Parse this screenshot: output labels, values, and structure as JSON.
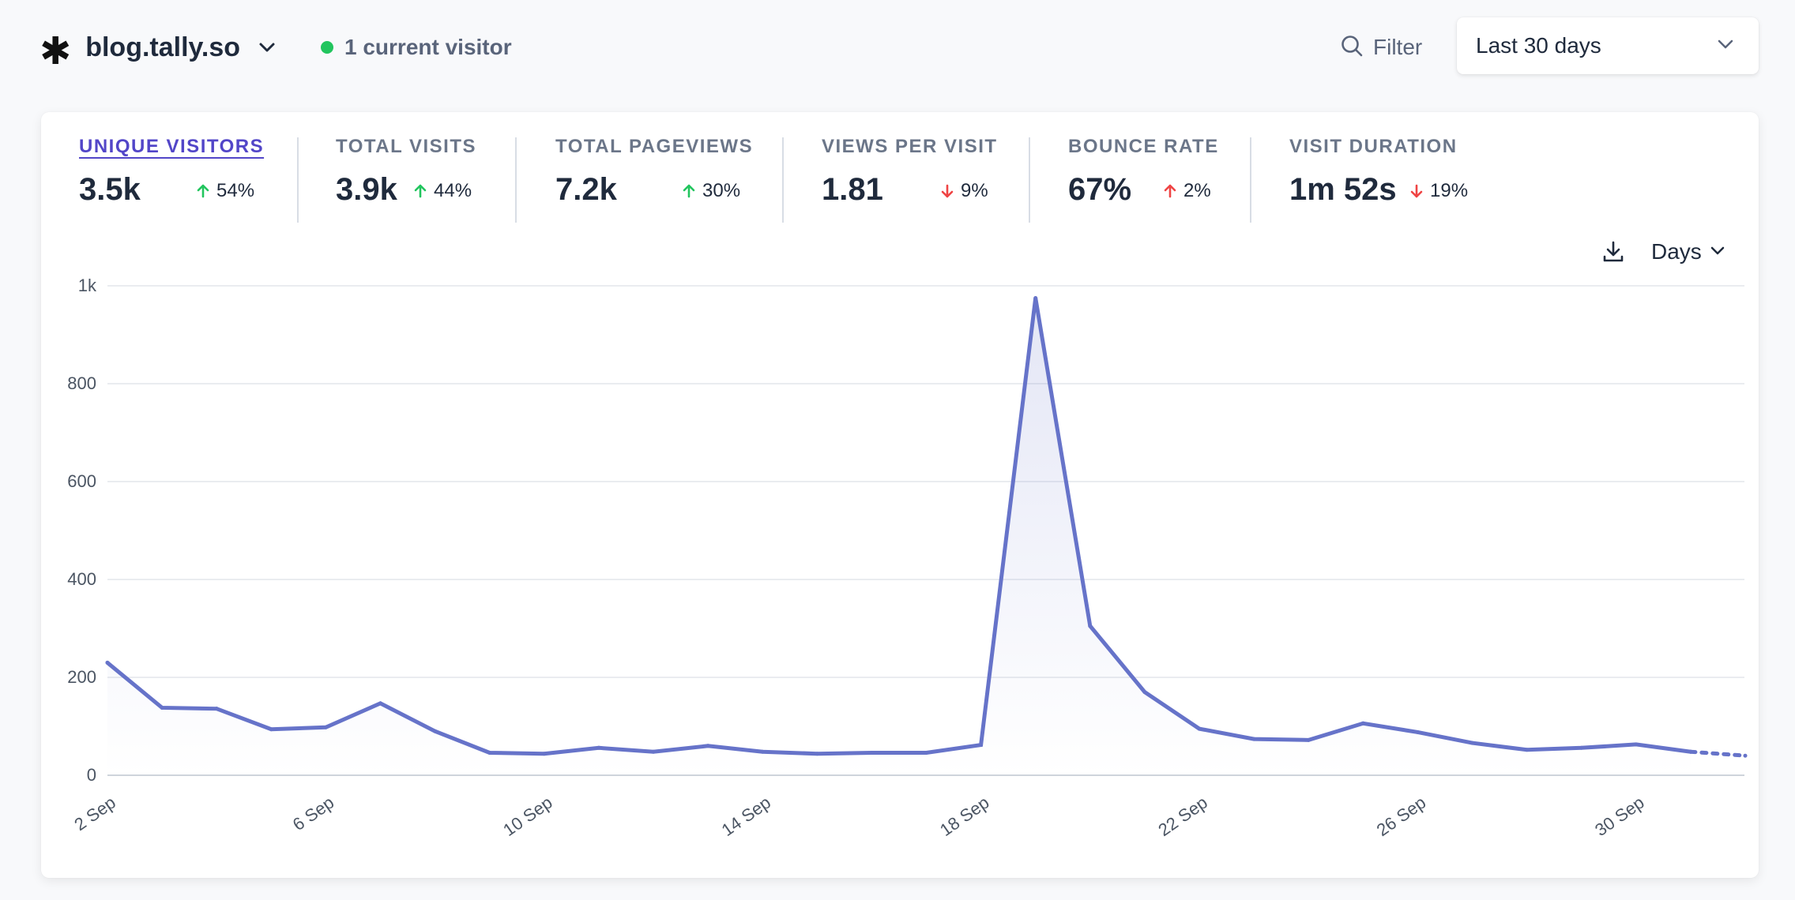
{
  "header": {
    "site_icon": "asterisk-icon",
    "site_name": "blog.tally.so",
    "current_visitors": "1 current visitor",
    "filter_label": "Filter",
    "period_label": "Last 30 days"
  },
  "metrics": [
    {
      "label": "UNIQUE VISITORS",
      "value": "3.5k",
      "change": "54%",
      "direction": "up"
    },
    {
      "label": "TOTAL VISITS",
      "value": "3.9k",
      "change": "44%",
      "direction": "up"
    },
    {
      "label": "TOTAL PAGEVIEWS",
      "value": "7.2k",
      "change": "30%",
      "direction": "up"
    },
    {
      "label": "VIEWS PER VISIT",
      "value": "1.81",
      "change": "9%",
      "direction": "down"
    },
    {
      "label": "BOUNCE RATE",
      "value": "67%",
      "change": "2%",
      "direction": "up"
    },
    {
      "label": "VISIT DURATION",
      "value": "1m 52s",
      "change": "19%",
      "direction": "down"
    }
  ],
  "chart_controls": {
    "interval_label": "Days"
  },
  "colors": {
    "line": "#6673c9",
    "active_tab": "#5246c8",
    "up_good": "#22c55e",
    "up_bad": "#ef4444",
    "down_bad": "#ef4444",
    "live_dot": "#22c55e"
  },
  "chart_data": {
    "type": "line",
    "title": "",
    "xlabel": "",
    "ylabel": "",
    "ylim": [
      0,
      1000
    ],
    "y_ticks": [
      "0",
      "200",
      "400",
      "600",
      "800",
      "1k"
    ],
    "x_tick_labels": [
      "2 Sep",
      "6 Sep",
      "10 Sep",
      "14 Sep",
      "18 Sep",
      "22 Sep",
      "26 Sep",
      "30 Sep"
    ],
    "x": [
      "2 Sep",
      "3 Sep",
      "4 Sep",
      "5 Sep",
      "6 Sep",
      "7 Sep",
      "8 Sep",
      "9 Sep",
      "10 Sep",
      "11 Sep",
      "12 Sep",
      "13 Sep",
      "14 Sep",
      "15 Sep",
      "16 Sep",
      "17 Sep",
      "18 Sep",
      "19 Sep",
      "20 Sep",
      "21 Sep",
      "22 Sep",
      "23 Sep",
      "24 Sep",
      "25 Sep",
      "26 Sep",
      "27 Sep",
      "28 Sep",
      "29 Sep",
      "30 Sep",
      "1 Oct",
      "2 Oct"
    ],
    "series": [
      {
        "values": [
          230,
          138,
          136,
          94,
          98,
          147,
          90,
          46,
          44,
          56,
          48,
          60,
          48,
          44,
          46,
          46,
          62,
          975,
          305,
          170,
          95,
          74,
          72,
          106,
          88,
          66,
          52,
          56,
          63,
          48,
          40
        ],
        "partial_last": true
      }
    ],
    "grid": true,
    "area_fill": true
  }
}
